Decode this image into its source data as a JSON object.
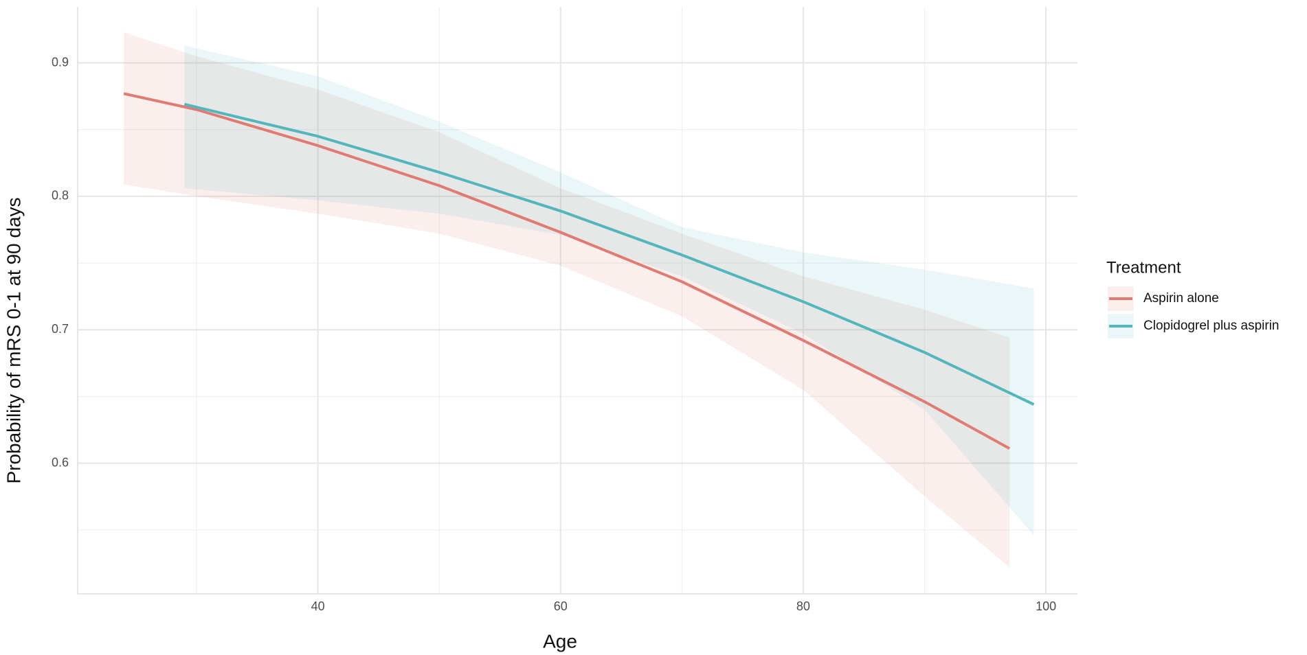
{
  "chart_data": {
    "type": "line",
    "x_label": "Age",
    "y_label": "Probability of mRS 0-1 at 90 days",
    "legend_title": "Treatment",
    "legend_position": "right",
    "grid": true,
    "xlim": [
      20.2,
      102.6
    ],
    "xticks": [
      40,
      60,
      80,
      100
    ],
    "ylim": [
      0.502,
      0.942
    ],
    "yticks": [
      0.6,
      0.7,
      0.8,
      0.9
    ],
    "series": [
      {
        "name": "Aspirin alone",
        "color": "#e07b72",
        "x": [
          24,
          30,
          40,
          50,
          60,
          70,
          80,
          90,
          97
        ],
        "values": [
          0.877,
          0.865,
          0.838,
          0.808,
          0.773,
          0.736,
          0.692,
          0.646,
          0.611
        ],
        "lower": [
          0.809,
          0.8,
          0.787,
          0.772,
          0.748,
          0.71,
          0.655,
          0.575,
          0.522
        ],
        "upper": [
          0.923,
          0.905,
          0.88,
          0.848,
          0.806,
          0.772,
          0.74,
          0.715,
          0.694
        ]
      },
      {
        "name": "Clopidogrel plus aspirin",
        "color": "#52b6bd",
        "x": [
          29,
          40,
          50,
          60,
          70,
          80,
          90,
          99
        ],
        "values": [
          0.869,
          0.845,
          0.818,
          0.789,
          0.756,
          0.721,
          0.683,
          0.644
        ],
        "lower": [
          0.806,
          0.797,
          0.787,
          0.771,
          0.74,
          0.697,
          0.64,
          0.546
        ],
        "upper": [
          0.913,
          0.89,
          0.856,
          0.818,
          0.777,
          0.758,
          0.745,
          0.731
        ]
      }
    ]
  }
}
